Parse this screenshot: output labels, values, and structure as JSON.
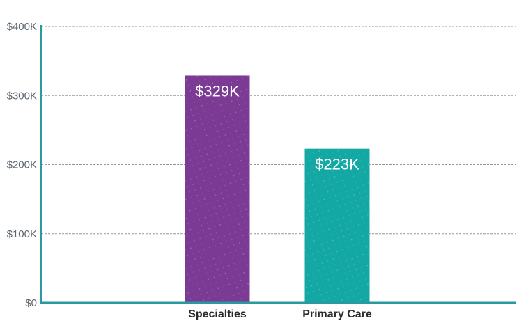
{
  "chart_data": {
    "type": "bar",
    "categories": [
      "Specialties",
      "Primary Care"
    ],
    "values": [
      329,
      223
    ],
    "data_labels": [
      "$329K",
      "$223K"
    ],
    "colors": [
      "#7b3a93",
      "#14a8a4"
    ],
    "ylim": [
      0,
      400
    ],
    "yticks": [
      0,
      100,
      200,
      300,
      400
    ],
    "ytick_labels": [
      "$0",
      "$100K",
      "$200K",
      "$300K",
      "$400K"
    ],
    "grid": true,
    "title": "",
    "xlabel": "",
    "ylabel": ""
  }
}
